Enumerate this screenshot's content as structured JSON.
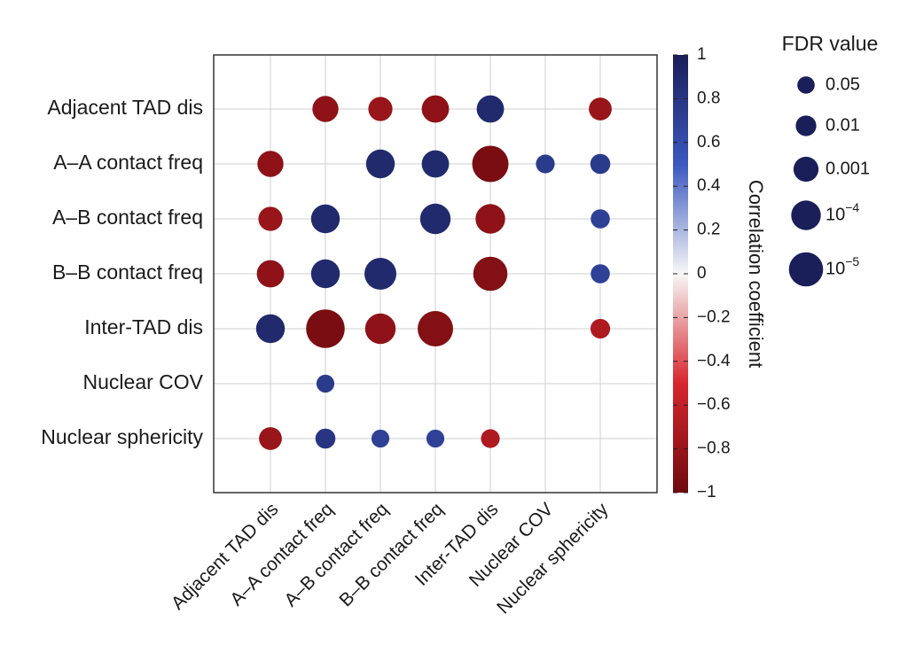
{
  "chart_data": {
    "type": "bubble-matrix",
    "row_labels": [
      "Adjacent TAD dis",
      "A–A contact freq",
      "A–B contact freq",
      "B–B contact freq",
      "Inter-TAD dis",
      "Nuclear COV",
      "Nuclear sphericity"
    ],
    "col_labels": [
      "Adjacent TAD dis",
      "A–A contact freq",
      "A–B contact freq",
      "B–B contact freq",
      "Inter-TAD dis",
      "Nuclear COV",
      "Nuclear sphericity"
    ],
    "cells": [
      {
        "row": 0,
        "col": 1,
        "r": -0.85,
        "fdr_exp": 3.2
      },
      {
        "row": 0,
        "col": 2,
        "r": -0.8,
        "fdr_exp": 2.8
      },
      {
        "row": 0,
        "col": 3,
        "r": -0.85,
        "fdr_exp": 3.5
      },
      {
        "row": 0,
        "col": 4,
        "r": 0.9,
        "fdr_exp": 3.5
      },
      {
        "row": 0,
        "col": 6,
        "r": -0.8,
        "fdr_exp": 2.5
      },
      {
        "row": 1,
        "col": 0,
        "r": -0.85,
        "fdr_exp": 3.2
      },
      {
        "row": 1,
        "col": 2,
        "r": 0.9,
        "fdr_exp": 3.8
      },
      {
        "row": 1,
        "col": 3,
        "r": 0.9,
        "fdr_exp": 3.5
      },
      {
        "row": 1,
        "col": 4,
        "r": -0.95,
        "fdr_exp": 5.5
      },
      {
        "row": 1,
        "col": 5,
        "r": 0.75,
        "fdr_exp": 1.6
      },
      {
        "row": 1,
        "col": 6,
        "r": 0.75,
        "fdr_exp": 1.9
      },
      {
        "row": 2,
        "col": 0,
        "r": -0.8,
        "fdr_exp": 2.8
      },
      {
        "row": 2,
        "col": 1,
        "r": 0.9,
        "fdr_exp": 3.8
      },
      {
        "row": 2,
        "col": 3,
        "r": 0.9,
        "fdr_exp": 4.2
      },
      {
        "row": 2,
        "col": 4,
        "r": -0.85,
        "fdr_exp": 4.0
      },
      {
        "row": 2,
        "col": 6,
        "r": 0.7,
        "fdr_exp": 1.7
      },
      {
        "row": 3,
        "col": 0,
        "r": -0.85,
        "fdr_exp": 3.5
      },
      {
        "row": 3,
        "col": 1,
        "r": 0.9,
        "fdr_exp": 3.8
      },
      {
        "row": 3,
        "col": 2,
        "r": 0.9,
        "fdr_exp": 4.5
      },
      {
        "row": 3,
        "col": 4,
        "r": -0.9,
        "fdr_exp": 5.0
      },
      {
        "row": 3,
        "col": 6,
        "r": 0.7,
        "fdr_exp": 1.7
      },
      {
        "row": 4,
        "col": 0,
        "r": 0.9,
        "fdr_exp": 3.8
      },
      {
        "row": 4,
        "col": 1,
        "r": -0.95,
        "fdr_exp": 6.0
      },
      {
        "row": 4,
        "col": 2,
        "r": -0.85,
        "fdr_exp": 4.2
      },
      {
        "row": 4,
        "col": 3,
        "r": -0.9,
        "fdr_exp": 5.3
      },
      {
        "row": 4,
        "col": 6,
        "r": -0.7,
        "fdr_exp": 1.8
      },
      {
        "row": 5,
        "col": 1,
        "r": 0.75,
        "fdr_exp": 1.4
      },
      {
        "row": 6,
        "col": 0,
        "r": -0.8,
        "fdr_exp": 2.5
      },
      {
        "row": 6,
        "col": 1,
        "r": 0.8,
        "fdr_exp": 1.9
      },
      {
        "row": 6,
        "col": 2,
        "r": 0.7,
        "fdr_exp": 1.4
      },
      {
        "row": 6,
        "col": 3,
        "r": 0.7,
        "fdr_exp": 1.4
      },
      {
        "row": 6,
        "col": 4,
        "r": -0.7,
        "fdr_exp": 1.6
      }
    ],
    "colorbar": {
      "title": "Correlation coefficient",
      "range": [
        -1,
        1
      ],
      "ticks": [
        {
          "value": 1,
          "label": "1"
        },
        {
          "value": 0.8,
          "label": "0.8"
        },
        {
          "value": 0.6,
          "label": "0.6"
        },
        {
          "value": 0.4,
          "label": "0.4"
        },
        {
          "value": 0.2,
          "label": "0.2"
        },
        {
          "value": 0,
          "label": "0"
        },
        {
          "value": -0.2,
          "label": "−0.2"
        },
        {
          "value": -0.4,
          "label": "−0.4"
        },
        {
          "value": -0.6,
          "label": "−0.6"
        },
        {
          "value": -0.8,
          "label": "−0.8"
        },
        {
          "value": -1,
          "label": "−1"
        }
      ],
      "colors": {
        "neg_dark": "#6e0a0e",
        "neg_mid": "#d7262d",
        "neutral": "#f7f7f7",
        "pos_mid": "#3b58bf",
        "pos_dark": "#1a1e59"
      }
    },
    "size_legend": {
      "title": "FDR value",
      "entries": [
        {
          "label_base": "0.05",
          "label_exp": "",
          "fdr_exp": 1.3
        },
        {
          "label_base": "0.01",
          "label_exp": "",
          "fdr_exp": 2.0
        },
        {
          "label_base": "0.001",
          "label_exp": "",
          "fdr_exp": 3.0
        },
        {
          "label_base": "10",
          "label_exp": "−4",
          "fdr_exp": 4.0
        },
        {
          "label_base": "10",
          "label_exp": "−5",
          "fdr_exp": 5.0
        }
      ],
      "color": "#1a1e59"
    }
  }
}
